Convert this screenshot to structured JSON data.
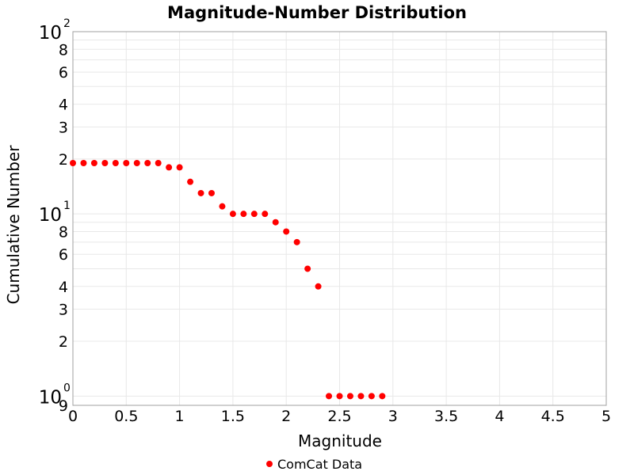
{
  "chart_data": {
    "type": "scatter",
    "title": "Magnitude-Number Distribution",
    "xlabel": "Magnitude",
    "ylabel": "Cumulative Number",
    "xlim": [
      0,
      5
    ],
    "ylim": [
      0.89,
      100
    ],
    "yscale": "log",
    "grid": true,
    "legend_position": "bottom",
    "x_ticks": [
      "0",
      "0.5",
      "1",
      "1.5",
      "2",
      "2.5",
      "3",
      "3.5",
      "4",
      "4.5",
      "5"
    ],
    "y_major_ticks": [
      {
        "base": "10",
        "exp": "0"
      },
      {
        "base": "10",
        "exp": "1"
      },
      {
        "base": "10",
        "exp": "2"
      }
    ],
    "y_minor_ticks": [
      "9",
      "2",
      "3",
      "4",
      "6",
      "8",
      "2",
      "3",
      "4",
      "6",
      "8"
    ],
    "series": [
      {
        "name": "ComCat Data",
        "color": "#ff0000",
        "x": [
          0,
          0.1,
          0.2,
          0.3,
          0.4,
          0.5,
          0.6,
          0.7,
          0.8,
          0.9,
          1.0,
          1.1,
          1.2,
          1.3,
          1.4,
          1.5,
          1.6,
          1.7,
          1.8,
          1.9,
          2.0,
          2.1,
          2.2,
          2.3,
          2.4,
          2.5,
          2.6,
          2.7,
          2.8,
          2.9
        ],
        "y": [
          19,
          19,
          19,
          19,
          19,
          19,
          19,
          19,
          19,
          18,
          18,
          15,
          13,
          13,
          11,
          10,
          10,
          10,
          10,
          9,
          8,
          7,
          5,
          4,
          1,
          1,
          1,
          1,
          1,
          1
        ]
      }
    ]
  }
}
